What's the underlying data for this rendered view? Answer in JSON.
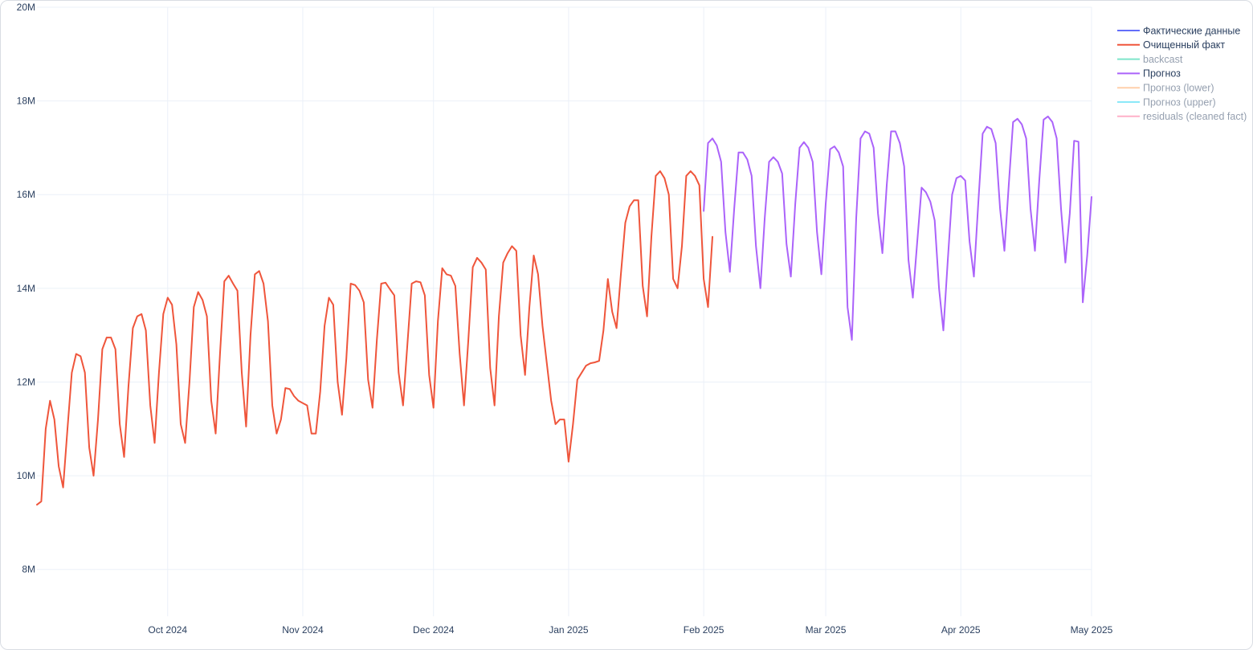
{
  "chart_data": {
    "type": "line",
    "title": "",
    "xlabel": "",
    "ylabel": "",
    "x_range": [
      "2024-09-01",
      "2025-05-01"
    ],
    "ylim": [
      7000000,
      20000000
    ],
    "y_ticks": [
      {
        "value": 8000000,
        "label": "8M"
      },
      {
        "value": 10000000,
        "label": "10M"
      },
      {
        "value": 12000000,
        "label": "12M"
      },
      {
        "value": 14000000,
        "label": "14M"
      },
      {
        "value": 16000000,
        "label": "16M"
      },
      {
        "value": 18000000,
        "label": "18M"
      },
      {
        "value": 20000000,
        "label": "20M"
      }
    ],
    "x_ticks": [
      {
        "date": "2024-10-01",
        "label": "Oct 2024"
      },
      {
        "date": "2024-11-01",
        "label": "Nov 2024"
      },
      {
        "date": "2024-12-01",
        "label": "Dec 2024"
      },
      {
        "date": "2025-01-01",
        "label": "Jan 2025"
      },
      {
        "date": "2025-02-01",
        "label": "Feb 2025"
      },
      {
        "date": "2025-03-01",
        "label": "Mar 2025"
      },
      {
        "date": "2025-04-01",
        "label": "Apr 2025"
      },
      {
        "date": "2025-05-01",
        "label": "May 2025"
      }
    ],
    "grid": true,
    "legend_position": "top-right",
    "legend": [
      {
        "name": "Фактические данные",
        "color": "#636efa",
        "visible": true
      },
      {
        "name": "Очищенный факт",
        "color": "#ef553b",
        "visible": true
      },
      {
        "name": "backcast",
        "color": "#00cc96",
        "visible": false
      },
      {
        "name": "Прогноз",
        "color": "#ab63fa",
        "visible": true
      },
      {
        "name": "Прогноз (lower)",
        "color": "#ffa15a",
        "visible": false
      },
      {
        "name": "Прогноз (upper)",
        "color": "#19d3f3",
        "visible": false
      },
      {
        "name": "residuals (cleaned fact)",
        "color": "#ff6692",
        "visible": false
      }
    ],
    "series": [
      {
        "name": "Очищенный факт",
        "color": "#ef553b",
        "start_date": "2024-09-01",
        "values_m": [
          9.38,
          9.45,
          11.0,
          11.6,
          11.2,
          10.2,
          9.75,
          11.0,
          12.2,
          12.6,
          12.55,
          12.2,
          10.6,
          10.0,
          11.2,
          12.7,
          12.95,
          12.95,
          12.7,
          11.1,
          10.4,
          11.9,
          13.15,
          13.4,
          13.45,
          13.1,
          11.5,
          10.7,
          12.2,
          13.45,
          13.8,
          13.65,
          12.8,
          11.1,
          10.7,
          12.0,
          13.6,
          13.92,
          13.75,
          13.4,
          11.6,
          10.9,
          12.6,
          14.15,
          14.27,
          14.1,
          13.95,
          12.2,
          11.05,
          13.0,
          14.3,
          14.37,
          14.1,
          13.3,
          11.5,
          10.9,
          11.2,
          11.87,
          11.85,
          11.7,
          11.6,
          11.55,
          11.5,
          10.9,
          10.9,
          11.8,
          13.2,
          13.8,
          13.65,
          12.0,
          11.3,
          12.5,
          14.1,
          14.07,
          13.95,
          13.7,
          12.05,
          11.45,
          12.9,
          14.1,
          14.12,
          13.98,
          13.85,
          12.2,
          11.5,
          12.8,
          14.1,
          14.15,
          14.13,
          13.85,
          12.15,
          11.45,
          13.3,
          14.43,
          14.3,
          14.27,
          14.05,
          12.6,
          11.5,
          12.9,
          14.45,
          14.65,
          14.55,
          14.4,
          12.3,
          11.5,
          13.4,
          14.55,
          14.75,
          14.9,
          14.8,
          13.0,
          12.15,
          13.6,
          14.7,
          14.3,
          13.2,
          12.4,
          11.6,
          11.1,
          11.2,
          11.2,
          10.3,
          11.1,
          12.05,
          12.2,
          12.35,
          12.4,
          12.42,
          12.45,
          13.1,
          14.2,
          13.5,
          13.15,
          14.3,
          15.4,
          15.75,
          15.88,
          15.88,
          14.05,
          13.4,
          15.1,
          16.4,
          16.5,
          16.35,
          16.0,
          14.2,
          14.0,
          14.9,
          16.4,
          16.5,
          16.4,
          16.2,
          14.2,
          13.6,
          15.1
        ]
      },
      {
        "name": "Прогноз",
        "color": "#ab63fa",
        "start_date": "2025-02-01",
        "values_m": [
          15.65,
          17.1,
          17.2,
          17.05,
          16.7,
          15.2,
          14.35,
          15.7,
          16.9,
          16.9,
          16.75,
          16.4,
          14.9,
          14.0,
          15.5,
          16.7,
          16.8,
          16.7,
          16.45,
          14.95,
          14.25,
          15.8,
          17.0,
          17.12,
          17.0,
          16.7,
          15.2,
          14.3,
          15.8,
          16.97,
          17.03,
          16.9,
          16.6,
          13.6,
          12.9,
          15.5,
          17.2,
          17.35,
          17.3,
          17.0,
          15.6,
          14.75,
          16.2,
          17.35,
          17.35,
          17.1,
          16.6,
          14.6,
          13.8,
          15.0,
          16.15,
          16.05,
          15.85,
          15.45,
          14.0,
          13.1,
          14.6,
          16.0,
          16.35,
          16.4,
          16.3,
          15.0,
          14.25,
          15.8,
          17.3,
          17.45,
          17.4,
          17.1,
          15.7,
          14.8,
          16.2,
          17.55,
          17.62,
          17.5,
          17.2,
          15.7,
          14.8,
          16.3,
          17.6,
          17.67,
          17.55,
          17.2,
          15.7,
          14.55,
          15.6,
          17.15,
          17.13,
          13.7,
          14.7,
          15.95
        ]
      }
    ]
  }
}
